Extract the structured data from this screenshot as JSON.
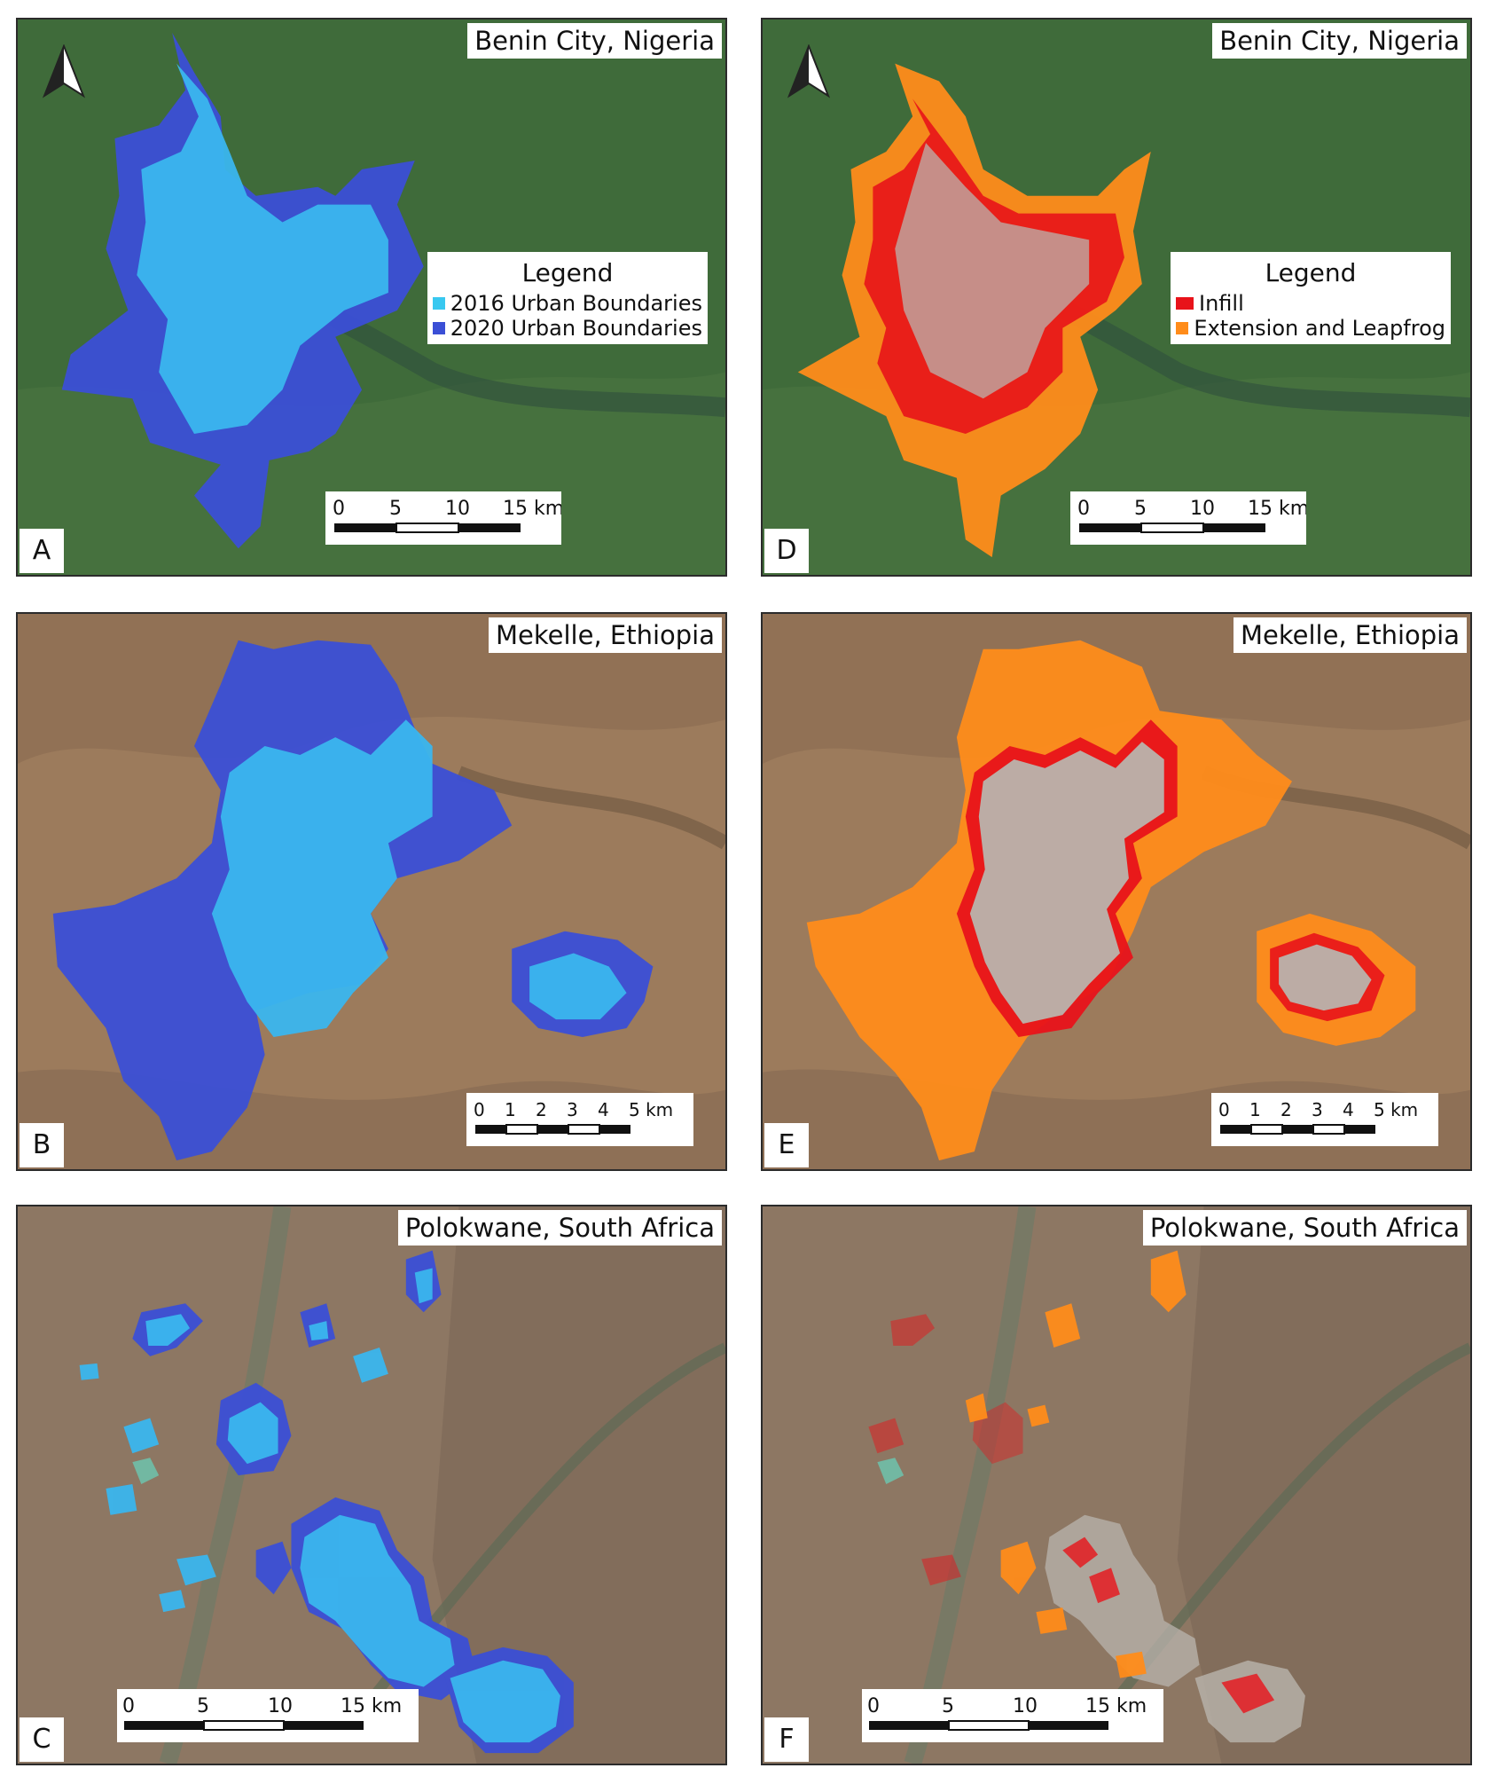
{
  "panels": [
    {
      "id": "A",
      "letter": "A",
      "title": "Benin City, Nigeria",
      "theme": "forest",
      "kind": "boundary",
      "north_arrow": true,
      "legend": {
        "title": "Legend",
        "items": [
          {
            "label": "2016 Urban Boundaries",
            "color": "#38c8f0"
          },
          {
            "label": "2020 Urban Boundaries",
            "color": "#3b4fd6"
          }
        ]
      },
      "scale": {
        "labels": [
          "0",
          "5",
          "10",
          "15 km"
        ]
      }
    },
    {
      "id": "D",
      "letter": "D",
      "title": "Benin City, Nigeria",
      "theme": "forest",
      "kind": "expansion",
      "north_arrow": true,
      "legend": {
        "title": "Legend",
        "items": [
          {
            "label": "Infill",
            "color": "#e8131a"
          },
          {
            "label": "Extension and Leapfrog",
            "color": "#ff8c1a"
          }
        ]
      },
      "scale": {
        "labels": [
          "0",
          "5",
          "10",
          "15 km"
        ]
      }
    },
    {
      "id": "B",
      "letter": "B",
      "title": "Mekelle, Ethiopia",
      "theme": "arid",
      "kind": "boundary",
      "north_arrow": false,
      "legend": null,
      "scale": {
        "labels": [
          "0",
          "1",
          "2",
          "3",
          "4",
          "5 km"
        ]
      }
    },
    {
      "id": "E",
      "letter": "E",
      "title": "Mekelle, Ethiopia",
      "theme": "arid",
      "kind": "expansion",
      "north_arrow": false,
      "legend": null,
      "scale": {
        "labels": [
          "0",
          "1",
          "2",
          "3",
          "4",
          "5 km"
        ]
      }
    },
    {
      "id": "C",
      "letter": "C",
      "title": "Polokwane, South Africa",
      "theme": "savanna",
      "kind": "boundary",
      "north_arrow": false,
      "legend": null,
      "scale": {
        "labels": [
          "0",
          "5",
          "10",
          "15 km"
        ]
      }
    },
    {
      "id": "F",
      "letter": "F",
      "title": "Polokwane, South Africa",
      "theme": "savanna",
      "kind": "expansion",
      "north_arrow": false,
      "legend": null,
      "scale": {
        "labels": [
          "0",
          "5",
          "10",
          "15 km"
        ]
      }
    }
  ],
  "colors": {
    "boundary_2016": "#38c8f0",
    "boundary_2020": "#3b4fd6",
    "infill": "#e8131a",
    "extension_leapfrog": "#ff8c1a",
    "built_up": "#b9b4ad"
  }
}
